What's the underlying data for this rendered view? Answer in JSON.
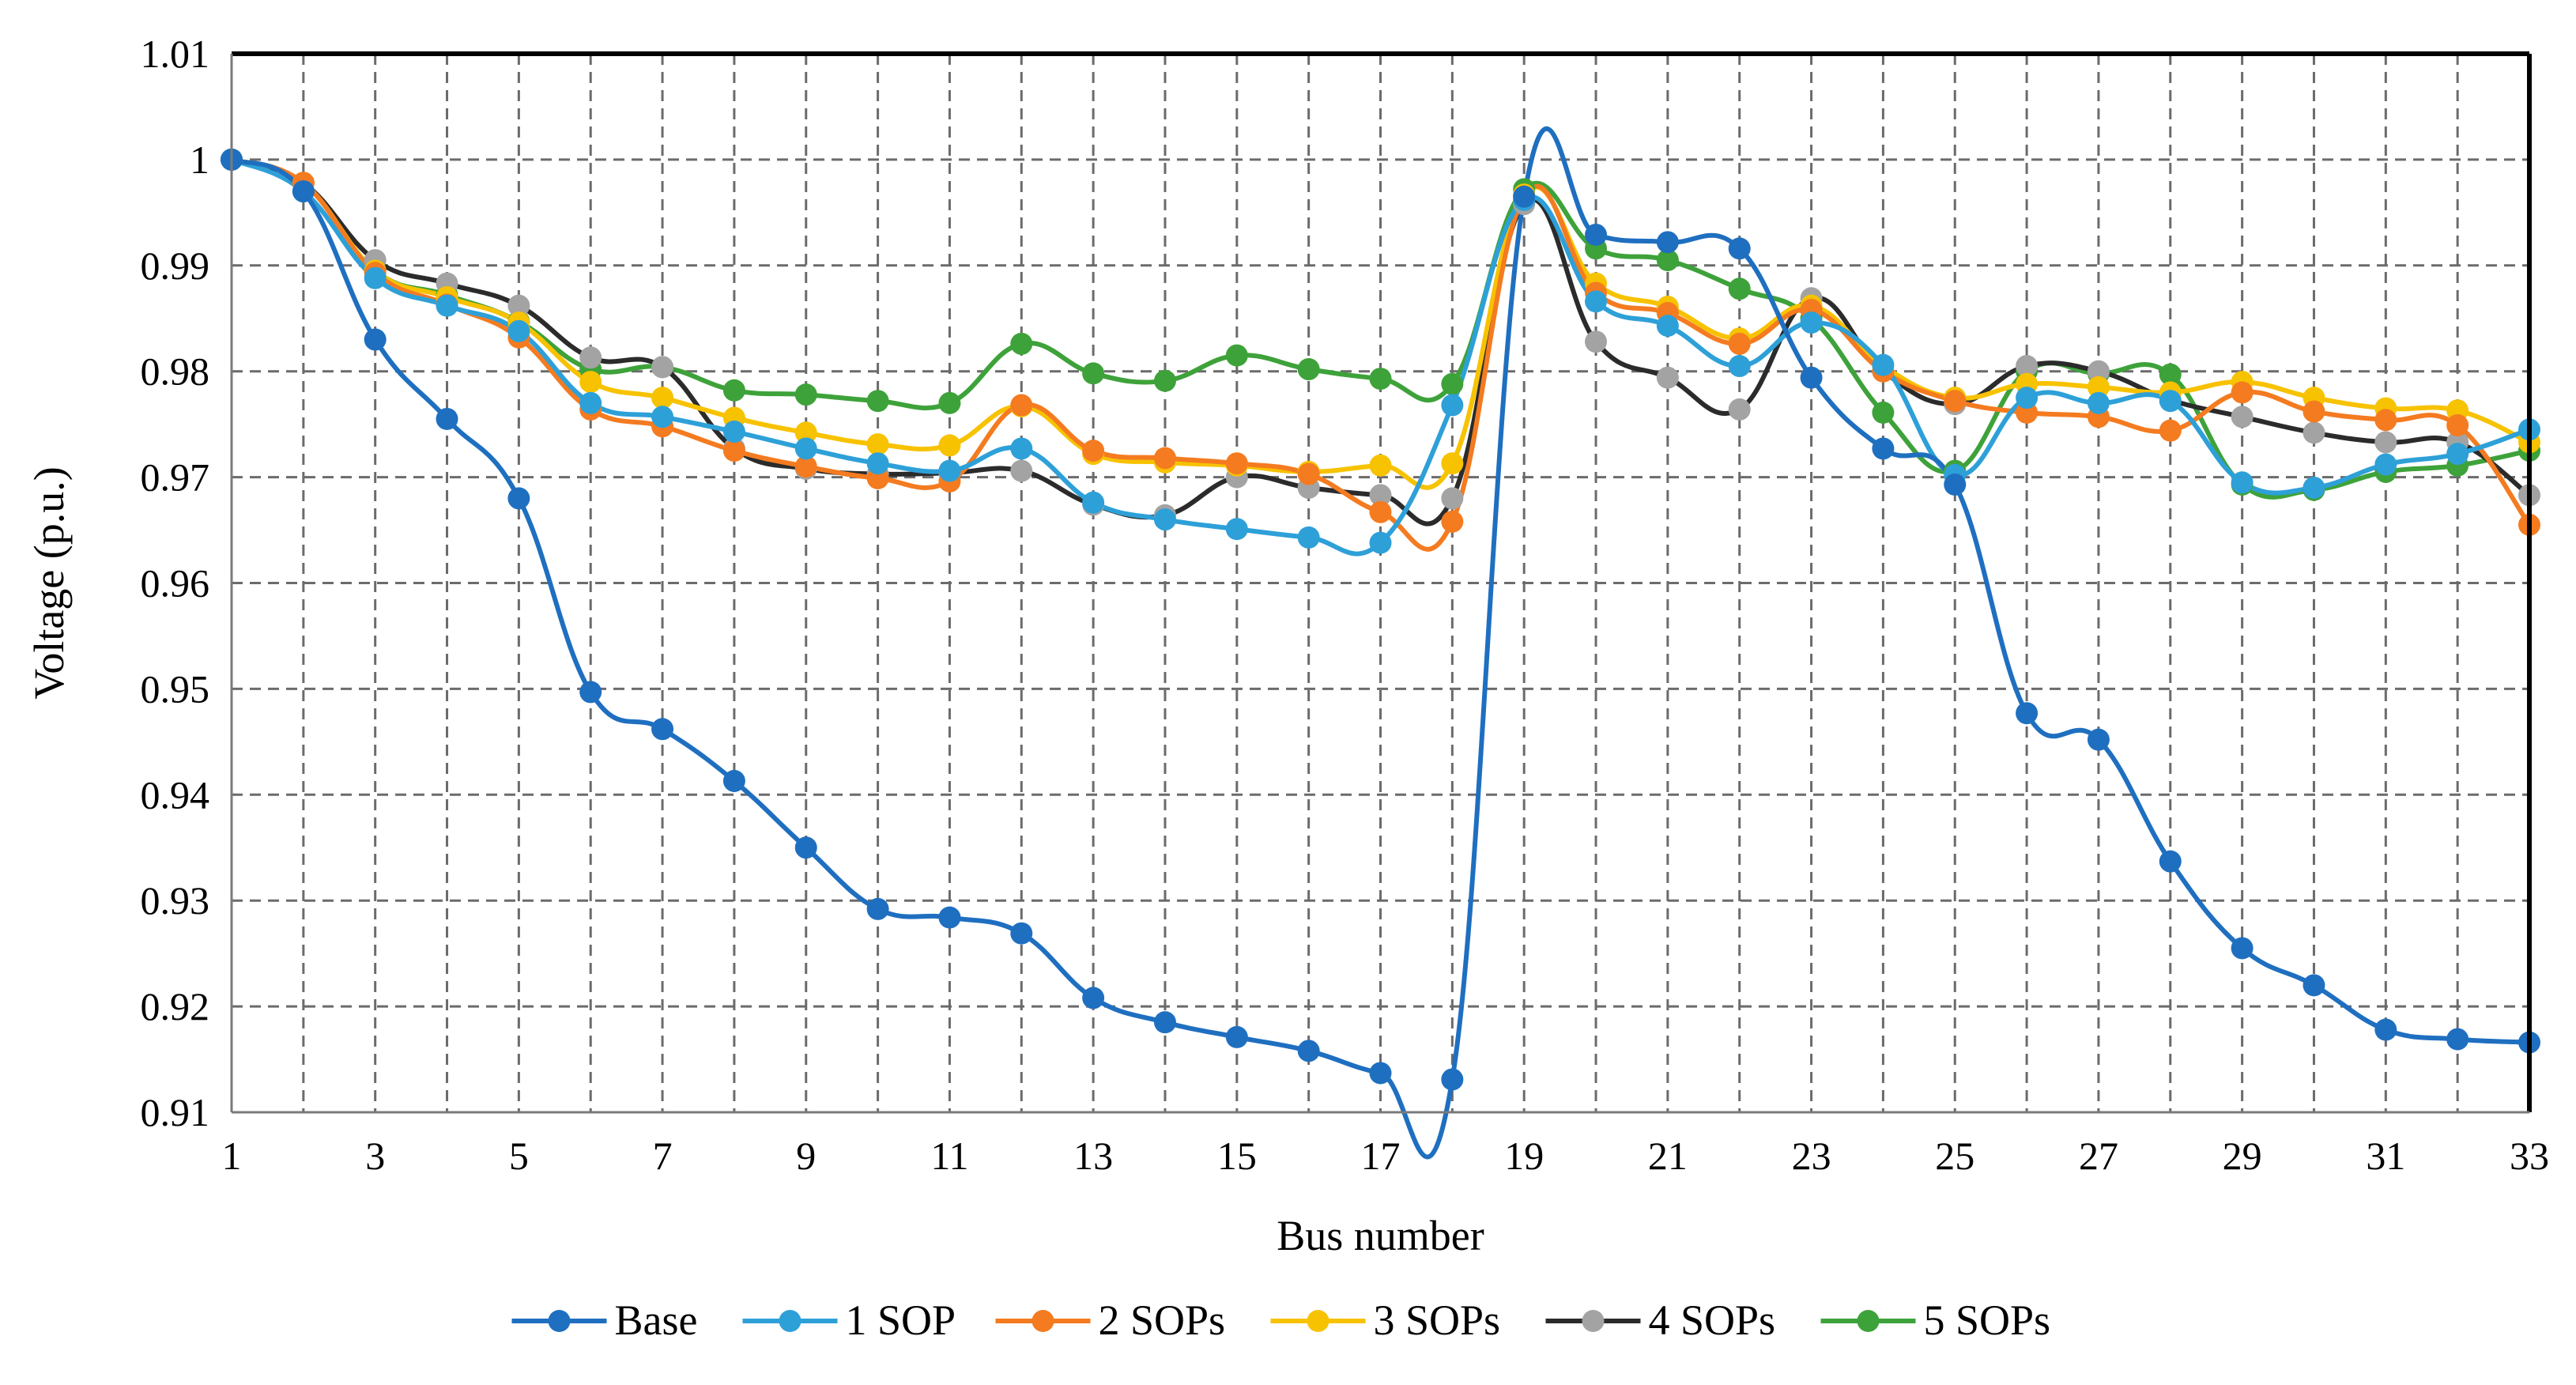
{
  "chart_data": {
    "type": "line",
    "title": "",
    "xlabel": "Bus number",
    "ylabel": "Voltage (p.u.)",
    "xlim": [
      1,
      33
    ],
    "ylim": [
      0.91,
      1.01
    ],
    "grid": true,
    "legend_position": "bottom",
    "x": [
      1,
      2,
      3,
      4,
      5,
      6,
      7,
      8,
      9,
      10,
      11,
      12,
      13,
      14,
      15,
      16,
      17,
      18,
      19,
      20,
      21,
      22,
      23,
      24,
      25,
      26,
      27,
      28,
      29,
      30,
      31,
      32,
      33
    ],
    "x_ticks": [
      1,
      3,
      5,
      7,
      9,
      11,
      13,
      15,
      17,
      19,
      21,
      23,
      25,
      27,
      29,
      31,
      33
    ],
    "y_ticks": [
      {
        "value": 0.91,
        "label": "0.91"
      },
      {
        "value": 0.92,
        "label": "0.92"
      },
      {
        "value": 0.93,
        "label": "0.93"
      },
      {
        "value": 0.94,
        "label": "0.94"
      },
      {
        "value": 0.95,
        "label": "0.95"
      },
      {
        "value": 0.96,
        "label": "0.96"
      },
      {
        "value": 0.97,
        "label": "0.97"
      },
      {
        "value": 0.98,
        "label": "0.98"
      },
      {
        "value": 0.99,
        "label": "0.99"
      },
      {
        "value": 1.0,
        "label": "1"
      },
      {
        "value": 1.01,
        "label": "1.01"
      }
    ],
    "series": [
      {
        "name": "Base",
        "line_color": "#1F6FC0",
        "marker_color": "#1F6FC0",
        "values": [
          1.0,
          0.997,
          0.983,
          0.9755,
          0.968,
          0.9497,
          0.9462,
          0.9413,
          0.935,
          0.9292,
          0.9284,
          0.9269,
          0.9208,
          0.9185,
          0.9171,
          0.9158,
          0.9137,
          0.9131,
          0.9965,
          0.9929,
          0.9922,
          0.9916,
          0.9794,
          0.9727,
          0.9693,
          0.9477,
          0.9452,
          0.9337,
          0.9255,
          0.922,
          0.9178,
          0.9169,
          0.9166
        ]
      },
      {
        "name": "1 SOP",
        "line_color": "#2EA0D8",
        "marker_color": "#2EA0D8",
        "values": [
          1.0,
          0.997,
          0.9888,
          0.9862,
          0.9838,
          0.977,
          0.9757,
          0.9743,
          0.9727,
          0.9713,
          0.9706,
          0.9727,
          0.9676,
          0.966,
          0.9651,
          0.9643,
          0.9638,
          0.9768,
          0.9962,
          0.9866,
          0.9843,
          0.9805,
          0.9846,
          0.9806,
          0.9702,
          0.9775,
          0.977,
          0.9772,
          0.9695,
          0.969,
          0.9712,
          0.9722,
          0.9745
        ]
      },
      {
        "name": "2 SOPs",
        "line_color": "#F47B20",
        "marker_color": "#F47B20",
        "values": [
          1.0,
          0.9978,
          0.9893,
          0.9863,
          0.9832,
          0.9764,
          0.9748,
          0.9725,
          0.971,
          0.9699,
          0.9696,
          0.9768,
          0.9725,
          0.9718,
          0.9713,
          0.9703,
          0.9667,
          0.9658,
          0.9965,
          0.9874,
          0.9855,
          0.9826,
          0.9858,
          0.98,
          0.9772,
          0.9761,
          0.9757,
          0.9744,
          0.978,
          0.9762,
          0.9754,
          0.9749,
          0.9655
        ]
      },
      {
        "name": "3 SOPs",
        "line_color": "#F7C200",
        "marker_color": "#F7C200",
        "values": [
          1.0,
          0.9978,
          0.9895,
          0.987,
          0.9846,
          0.979,
          0.9775,
          0.9756,
          0.9742,
          0.9731,
          0.973,
          0.9767,
          0.9722,
          0.9714,
          0.9711,
          0.9705,
          0.9711,
          0.9713,
          0.9967,
          0.9883,
          0.9861,
          0.9831,
          0.9862,
          0.9805,
          0.9775,
          0.9788,
          0.9785,
          0.978,
          0.979,
          0.9775,
          0.9765,
          0.9763,
          0.9733
        ]
      },
      {
        "name": "4 SOPs",
        "line_color": "#2B2B2B",
        "marker_color": "#A3A3A3",
        "values": [
          1.0,
          0.9978,
          0.9905,
          0.9883,
          0.9862,
          0.9813,
          0.9804,
          0.9727,
          0.9708,
          0.9703,
          0.9704,
          0.9706,
          0.9674,
          0.9664,
          0.97,
          0.969,
          0.9683,
          0.968,
          0.9958,
          0.9828,
          0.9794,
          0.9764,
          0.9869,
          0.98,
          0.9769,
          0.9805,
          0.98,
          0.9773,
          0.9757,
          0.9742,
          0.9733,
          0.9733,
          0.9683
        ]
      },
      {
        "name": "5 SOPs",
        "line_color": "#3EA23A",
        "marker_color": "#3EA23A",
        "values": [
          1.0,
          0.9978,
          0.9895,
          0.9872,
          0.9847,
          0.9802,
          0.9804,
          0.9782,
          0.9778,
          0.9772,
          0.977,
          0.9826,
          0.9798,
          0.9791,
          0.9815,
          0.9802,
          0.9793,
          0.9788,
          0.9972,
          0.9916,
          0.9905,
          0.9878,
          0.985,
          0.9761,
          0.9706,
          0.98,
          0.9798,
          0.9797,
          0.9693,
          0.9688,
          0.9705,
          0.9711,
          0.9725
        ]
      }
    ]
  }
}
